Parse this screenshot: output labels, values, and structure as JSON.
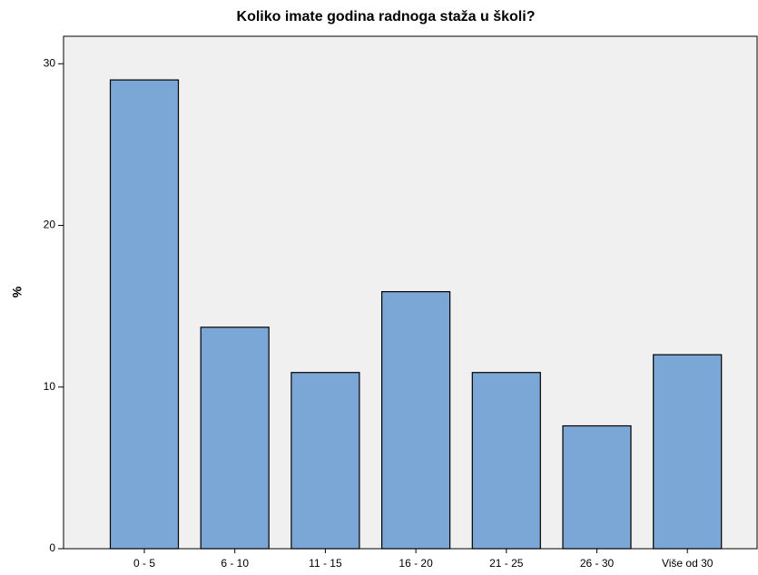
{
  "chart_data": {
    "type": "bar",
    "title": "Koliko imate godina radnoga staža u školi?",
    "y_label": "%",
    "categories": [
      "0 - 5",
      "6 - 10",
      "11 - 15",
      "16 - 20",
      "21 - 25",
      "26 - 30",
      "Više od 30"
    ],
    "values": [
      29.0,
      13.7,
      10.9,
      15.9,
      10.9,
      7.6,
      12.0
    ],
    "color": "#7ba7d6",
    "ylim": [
      0,
      31.7
    ],
    "yticks": [
      0,
      10,
      20,
      30
    ],
    "grid": false
  }
}
